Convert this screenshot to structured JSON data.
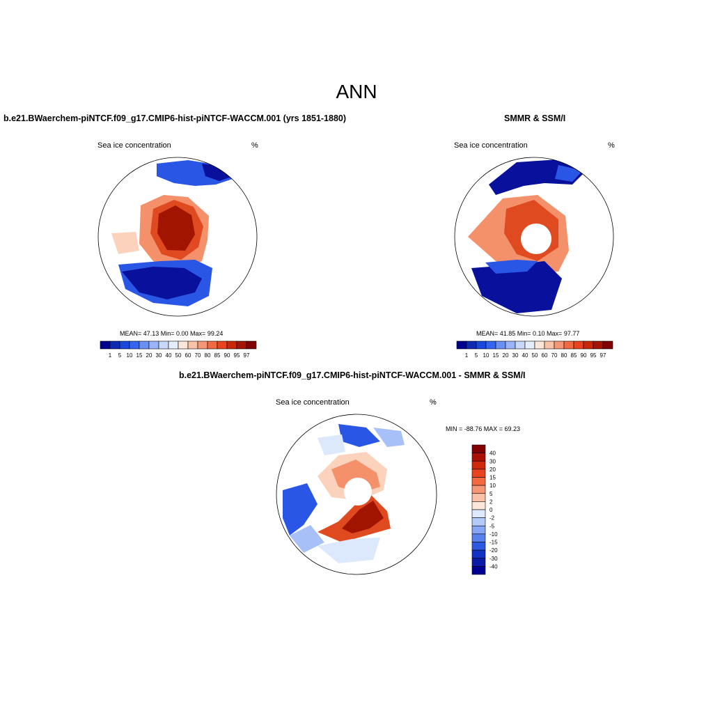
{
  "page": {
    "title": "ANN"
  },
  "panels": [
    {
      "heading": "b.e21.BWaerchem-piNTCF.f09_g17.CMIP6-hist-piNTCF-WACCM.001 (yrs 1851-1880)",
      "variable": "Sea ice concentration",
      "units": "%",
      "stats": "MEAN=  47.13  Min=   0.00  Max=  99.24"
    },
    {
      "heading": "SMMR & SSM/I",
      "variable": "Sea ice concentration",
      "units": "%",
      "stats": "MEAN=  41.85  Min=   0.10  Max=  97.77"
    },
    {
      "heading": "b.e21.BWaerchem-piNTCF.f09_g17.CMIP6-hist-piNTCF-WACCM.001 - SMMR & SSM/I",
      "variable": "Sea ice concentration",
      "units": "%",
      "stats": "MIN = -88.76 MAX =  69.23"
    }
  ],
  "colorbar_abs": {
    "labels": [
      "1",
      "5",
      "10",
      "15",
      "20",
      "30",
      "40",
      "50",
      "60",
      "70",
      "80",
      "85",
      "90",
      "95",
      "97"
    ],
    "colors": [
      "#00008c",
      "#0c2ab4",
      "#1848dc",
      "#3466f2",
      "#6a90f6",
      "#9ab4f8",
      "#c8d8fa",
      "#e6eefc",
      "#fde6da",
      "#f9c2a8",
      "#f59676",
      "#f06a44",
      "#e84420",
      "#c82808",
      "#a41400",
      "#820000"
    ]
  },
  "colorbar_diff": {
    "labels": [
      "40",
      "30",
      "20",
      "15",
      "10",
      "5",
      "2",
      "0",
      "-2",
      "-5",
      "-10",
      "-15",
      "-20",
      "-30",
      "-40"
    ],
    "colors": [
      "#820000",
      "#a81000",
      "#cc2a0a",
      "#e84420",
      "#f46a40",
      "#f59676",
      "#f9c2a8",
      "#fde6da",
      "#dde8fc",
      "#b4caf8",
      "#86a6f4",
      "#5a80ee",
      "#2e58e0",
      "#1232c4",
      "#0a1ca6",
      "#000090"
    ]
  },
  "map_colors": {
    "high": "#a01400",
    "mid_high": "#e04a20",
    "mid": "#f4916a",
    "low": "#fbd2bc",
    "blue_dark": "#08109c",
    "blue_mid": "#2a56e6",
    "blue_light": "#a8c0f8",
    "blue_pale": "#dce8fc"
  }
}
